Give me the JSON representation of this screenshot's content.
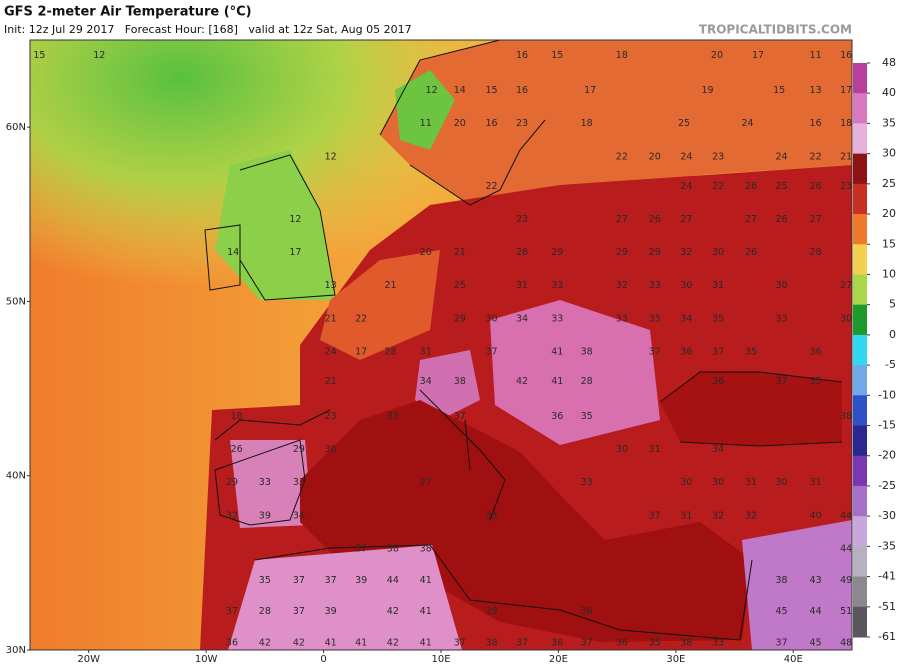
{
  "chart_data": {
    "type": "map",
    "title": "GFS 2-meter Air Temperature (°C)",
    "subtitle": "Init: 12z Jul 29 2017   Forecast Hour: [168]   valid at 12z Sat, Aug 05 2017",
    "credit": "TROPICALTIDBITS.COM",
    "xlim": [
      -25,
      45
    ],
    "ylim": [
      30,
      65
    ],
    "xticks": [
      {
        "value": -20,
        "label": "20W"
      },
      {
        "value": -10,
        "label": "10W"
      },
      0,
      {
        "value": 10,
        "label": "10E"
      },
      {
        "value": 20,
        "label": "20E"
      },
      {
        "value": 30,
        "label": "30E"
      },
      {
        "value": 40,
        "label": "40E"
      }
    ],
    "yticks": [
      {
        "value": 30,
        "label": "30N"
      },
      {
        "value": 40,
        "label": "40N"
      },
      {
        "value": 50,
        "label": "50N"
      },
      {
        "value": 60,
        "label": "60N"
      }
    ],
    "colorbar": {
      "ticks": [
        48,
        40,
        35,
        30,
        25,
        20,
        15,
        10,
        5,
        0,
        -5,
        -10,
        -15,
        -20,
        -25,
        -30,
        -35,
        -41,
        -51,
        -61
      ],
      "colors": [
        "#b8409c",
        "#d878c0",
        "#e8b0dc",
        "#8c1414",
        "#c83020",
        "#f07a2c",
        "#f2d050",
        "#a8d848",
        "#1e9a2c",
        "#30d8f0",
        "#70a8e8",
        "#3050c8",
        "#2a2890",
        "#7a38b0",
        "#a470c8",
        "#c8a8dc",
        "#b8b0c0",
        "#8c8890",
        "#5a5660"
      ]
    },
    "labels": [
      {
        "lon": -24.2,
        "lat": 64.1,
        "value": 15
      },
      {
        "lon": -19.1,
        "lat": 64.1,
        "value": 12
      },
      {
        "lon": 16.9,
        "lat": 64.1,
        "value": 16
      },
      {
        "lon": 19.9,
        "lat": 64.1,
        "value": 15
      },
      {
        "lon": 25.4,
        "lat": 64.1,
        "value": 18
      },
      {
        "lon": 33.5,
        "lat": 64.1,
        "value": 20
      },
      {
        "lon": 37.0,
        "lat": 64.1,
        "value": 17
      },
      {
        "lon": 41.9,
        "lat": 64.1,
        "value": 11
      },
      {
        "lon": 44.5,
        "lat": 64.1,
        "value": 16
      },
      {
        "lon": 9.2,
        "lat": 62.1,
        "value": 12
      },
      {
        "lon": 11.6,
        "lat": 62.1,
        "value": 14
      },
      {
        "lon": 14.3,
        "lat": 62.1,
        "value": 15
      },
      {
        "lon": 16.9,
        "lat": 62.1,
        "value": 16
      },
      {
        "lon": 22.7,
        "lat": 62.1,
        "value": 17
      },
      {
        "lon": 32.7,
        "lat": 62.1,
        "value": 19
      },
      {
        "lon": 38.8,
        "lat": 62.1,
        "value": 15
      },
      {
        "lon": 41.9,
        "lat": 62.1,
        "value": 13
      },
      {
        "lon": 44.5,
        "lat": 62.1,
        "value": 17
      },
      {
        "lon": 8.7,
        "lat": 60.2,
        "value": 11
      },
      {
        "lon": 11.6,
        "lat": 60.2,
        "value": 20
      },
      {
        "lon": 14.3,
        "lat": 60.2,
        "value": 16
      },
      {
        "lon": 16.9,
        "lat": 60.2,
        "value": 23
      },
      {
        "lon": 22.4,
        "lat": 60.2,
        "value": 18
      },
      {
        "lon": 30.7,
        "lat": 60.2,
        "value": 25
      },
      {
        "lon": 36.1,
        "lat": 60.2,
        "value": 24
      },
      {
        "lon": 41.9,
        "lat": 60.2,
        "value": 16
      },
      {
        "lon": 44.5,
        "lat": 60.2,
        "value": 18
      },
      {
        "lon": 0.6,
        "lat": 58.3,
        "value": 12
      },
      {
        "lon": 25.4,
        "lat": 58.3,
        "value": 22
      },
      {
        "lon": 28.2,
        "lat": 58.3,
        "value": 20
      },
      {
        "lon": 30.9,
        "lat": 58.3,
        "value": 24
      },
      {
        "lon": 33.6,
        "lat": 58.3,
        "value": 23
      },
      {
        "lon": 39.0,
        "lat": 58.3,
        "value": 24
      },
      {
        "lon": 41.9,
        "lat": 58.3,
        "value": 22
      },
      {
        "lon": 44.5,
        "lat": 58.3,
        "value": 21
      },
      {
        "lon": 14.3,
        "lat": 56.6,
        "value": 22
      },
      {
        "lon": 30.9,
        "lat": 56.6,
        "value": 24
      },
      {
        "lon": 33.6,
        "lat": 56.6,
        "value": 22
      },
      {
        "lon": 36.4,
        "lat": 56.6,
        "value": 26
      },
      {
        "lon": 39.0,
        "lat": 56.6,
        "value": 25
      },
      {
        "lon": 41.9,
        "lat": 56.6,
        "value": 26
      },
      {
        "lon": 44.5,
        "lat": 56.6,
        "value": 23
      },
      {
        "lon": -2.4,
        "lat": 54.7,
        "value": 12
      },
      {
        "lon": 16.9,
        "lat": 54.7,
        "value": 23
      },
      {
        "lon": 25.4,
        "lat": 54.7,
        "value": 27
      },
      {
        "lon": 28.2,
        "lat": 54.7,
        "value": 26
      },
      {
        "lon": 30.9,
        "lat": 54.7,
        "value": 27
      },
      {
        "lon": 36.4,
        "lat": 54.7,
        "value": 27
      },
      {
        "lon": 39.0,
        "lat": 54.7,
        "value": 26
      },
      {
        "lon": 41.9,
        "lat": 54.7,
        "value": 27
      },
      {
        "lon": -7.7,
        "lat": 52.8,
        "value": 14
      },
      {
        "lon": -2.4,
        "lat": 52.8,
        "value": 17
      },
      {
        "lon": 8.7,
        "lat": 52.8,
        "value": 20
      },
      {
        "lon": 11.6,
        "lat": 52.8,
        "value": 21
      },
      {
        "lon": 16.9,
        "lat": 52.8,
        "value": 28
      },
      {
        "lon": 19.9,
        "lat": 52.8,
        "value": 29
      },
      {
        "lon": 25.4,
        "lat": 52.8,
        "value": 29
      },
      {
        "lon": 28.2,
        "lat": 52.8,
        "value": 29
      },
      {
        "lon": 30.9,
        "lat": 52.8,
        "value": 32
      },
      {
        "lon": 33.6,
        "lat": 52.8,
        "value": 30
      },
      {
        "lon": 36.4,
        "lat": 52.8,
        "value": 26
      },
      {
        "lon": 41.9,
        "lat": 52.8,
        "value": 28
      },
      {
        "lon": 0.6,
        "lat": 50.9,
        "value": 13
      },
      {
        "lon": 5.7,
        "lat": 50.9,
        "value": 21
      },
      {
        "lon": 11.6,
        "lat": 50.9,
        "value": 25
      },
      {
        "lon": 16.9,
        "lat": 50.9,
        "value": 31
      },
      {
        "lon": 19.9,
        "lat": 50.9,
        "value": 33
      },
      {
        "lon": 25.4,
        "lat": 50.9,
        "value": 32
      },
      {
        "lon": 28.2,
        "lat": 50.9,
        "value": 33
      },
      {
        "lon": 30.9,
        "lat": 50.9,
        "value": 30
      },
      {
        "lon": 33.6,
        "lat": 50.9,
        "value": 31
      },
      {
        "lon": 39.0,
        "lat": 50.9,
        "value": 30
      },
      {
        "lon": 44.5,
        "lat": 50.9,
        "value": 27
      },
      {
        "lon": 0.6,
        "lat": 49.0,
        "value": 21
      },
      {
        "lon": 3.2,
        "lat": 49.0,
        "value": 22
      },
      {
        "lon": 11.6,
        "lat": 49.0,
        "value": 29
      },
      {
        "lon": 14.3,
        "lat": 49.0,
        "value": 30
      },
      {
        "lon": 16.9,
        "lat": 49.0,
        "value": 34
      },
      {
        "lon": 19.9,
        "lat": 49.0,
        "value": 33
      },
      {
        "lon": 25.4,
        "lat": 49.0,
        "value": 33
      },
      {
        "lon": 28.2,
        "lat": 49.0,
        "value": 35
      },
      {
        "lon": 30.9,
        "lat": 49.0,
        "value": 34
      },
      {
        "lon": 33.6,
        "lat": 49.0,
        "value": 35
      },
      {
        "lon": 39.0,
        "lat": 49.0,
        "value": 33
      },
      {
        "lon": 44.5,
        "lat": 49.0,
        "value": 30
      },
      {
        "lon": 0.6,
        "lat": 47.1,
        "value": 24
      },
      {
        "lon": 3.2,
        "lat": 47.1,
        "value": 17
      },
      {
        "lon": 5.7,
        "lat": 47.1,
        "value": 28
      },
      {
        "lon": 8.7,
        "lat": 47.1,
        "value": 31
      },
      {
        "lon": 14.3,
        "lat": 47.1,
        "value": 37
      },
      {
        "lon": 19.9,
        "lat": 47.1,
        "value": 41
      },
      {
        "lon": 22.4,
        "lat": 47.1,
        "value": 38
      },
      {
        "lon": 28.2,
        "lat": 47.1,
        "value": 37
      },
      {
        "lon": 30.9,
        "lat": 47.1,
        "value": 36
      },
      {
        "lon": 33.6,
        "lat": 47.1,
        "value": 37
      },
      {
        "lon": 36.4,
        "lat": 47.1,
        "value": 35
      },
      {
        "lon": 41.9,
        "lat": 47.1,
        "value": 36
      },
      {
        "lon": 0.6,
        "lat": 45.4,
        "value": 21
      },
      {
        "lon": 8.7,
        "lat": 45.4,
        "value": 34
      },
      {
        "lon": 11.6,
        "lat": 45.4,
        "value": 38
      },
      {
        "lon": 16.9,
        "lat": 45.4,
        "value": 42
      },
      {
        "lon": 19.9,
        "lat": 45.4,
        "value": 41
      },
      {
        "lon": 22.4,
        "lat": 45.4,
        "value": 28
      },
      {
        "lon": 33.6,
        "lat": 45.4,
        "value": 36
      },
      {
        "lon": 39.0,
        "lat": 45.4,
        "value": 37
      },
      {
        "lon": 41.9,
        "lat": 45.4,
        "value": 35
      },
      {
        "lon": -7.4,
        "lat": 43.4,
        "value": 18
      },
      {
        "lon": 0.6,
        "lat": 43.4,
        "value": 23
      },
      {
        "lon": 5.9,
        "lat": 43.4,
        "value": 33
      },
      {
        "lon": 11.6,
        "lat": 43.4,
        "value": 37
      },
      {
        "lon": 19.9,
        "lat": 43.4,
        "value": 36
      },
      {
        "lon": 22.4,
        "lat": 43.4,
        "value": 35
      },
      {
        "lon": 44.5,
        "lat": 43.4,
        "value": 38
      },
      {
        "lon": -7.4,
        "lat": 41.5,
        "value": 26
      },
      {
        "lon": -2.1,
        "lat": 41.5,
        "value": 29
      },
      {
        "lon": 0.6,
        "lat": 41.5,
        "value": 36
      },
      {
        "lon": 25.4,
        "lat": 41.5,
        "value": 30
      },
      {
        "lon": 28.2,
        "lat": 41.5,
        "value": 31
      },
      {
        "lon": 33.6,
        "lat": 41.5,
        "value": 34
      },
      {
        "lon": -7.8,
        "lat": 39.6,
        "value": 29
      },
      {
        "lon": -5.0,
        "lat": 39.6,
        "value": 33
      },
      {
        "lon": -2.1,
        "lat": 39.6,
        "value": 33
      },
      {
        "lon": 8.7,
        "lat": 39.6,
        "value": 27
      },
      {
        "lon": 22.4,
        "lat": 39.6,
        "value": 33
      },
      {
        "lon": 30.9,
        "lat": 39.6,
        "value": 30
      },
      {
        "lon": 33.6,
        "lat": 39.6,
        "value": 30
      },
      {
        "lon": 36.4,
        "lat": 39.6,
        "value": 31
      },
      {
        "lon": 39.0,
        "lat": 39.6,
        "value": 30
      },
      {
        "lon": 41.9,
        "lat": 39.6,
        "value": 31
      },
      {
        "lon": -7.8,
        "lat": 37.7,
        "value": 32
      },
      {
        "lon": -5.0,
        "lat": 37.7,
        "value": 39
      },
      {
        "lon": -2.1,
        "lat": 37.7,
        "value": 34
      },
      {
        "lon": 14.3,
        "lat": 37.7,
        "value": 33
      },
      {
        "lon": 28.2,
        "lat": 37.7,
        "value": 37
      },
      {
        "lon": 30.9,
        "lat": 37.7,
        "value": 31
      },
      {
        "lon": 33.6,
        "lat": 37.7,
        "value": 32
      },
      {
        "lon": 36.4,
        "lat": 37.7,
        "value": 32
      },
      {
        "lon": 41.9,
        "lat": 37.7,
        "value": 40
      },
      {
        "lon": 44.5,
        "lat": 37.7,
        "value": 44
      },
      {
        "lon": 3.2,
        "lat": 35.8,
        "value": 37
      },
      {
        "lon": 5.9,
        "lat": 35.8,
        "value": 38
      },
      {
        "lon": 8.7,
        "lat": 35.8,
        "value": 38
      },
      {
        "lon": 44.5,
        "lat": 35.8,
        "value": 44
      },
      {
        "lon": -5.0,
        "lat": 34.0,
        "value": 35
      },
      {
        "lon": -2.1,
        "lat": 34.0,
        "value": 37
      },
      {
        "lon": 0.6,
        "lat": 34.0,
        "value": 37
      },
      {
        "lon": 3.2,
        "lat": 34.0,
        "value": 39
      },
      {
        "lon": 5.9,
        "lat": 34.0,
        "value": 44
      },
      {
        "lon": 8.7,
        "lat": 34.0,
        "value": 41
      },
      {
        "lon": 39.0,
        "lat": 34.0,
        "value": 38
      },
      {
        "lon": 41.9,
        "lat": 34.0,
        "value": 43
      },
      {
        "lon": 44.5,
        "lat": 34.0,
        "value": 49
      },
      {
        "lon": -7.8,
        "lat": 32.2,
        "value": 37
      },
      {
        "lon": -5.0,
        "lat": 32.2,
        "value": 28
      },
      {
        "lon": -2.1,
        "lat": 32.2,
        "value": 37
      },
      {
        "lon": 0.6,
        "lat": 32.2,
        "value": 39
      },
      {
        "lon": 5.9,
        "lat": 32.2,
        "value": 42
      },
      {
        "lon": 8.7,
        "lat": 32.2,
        "value": 41
      },
      {
        "lon": 14.3,
        "lat": 32.2,
        "value": 39
      },
      {
        "lon": 22.4,
        "lat": 32.2,
        "value": 36
      },
      {
        "lon": 39.0,
        "lat": 32.2,
        "value": 45
      },
      {
        "lon": 41.9,
        "lat": 32.2,
        "value": 44
      },
      {
        "lon": 44.5,
        "lat": 32.2,
        "value": 51
      },
      {
        "lon": -7.8,
        "lat": 30.4,
        "value": 36
      },
      {
        "lon": -5.0,
        "lat": 30.4,
        "value": 42
      },
      {
        "lon": -2.1,
        "lat": 30.4,
        "value": 42
      },
      {
        "lon": 0.6,
        "lat": 30.4,
        "value": 41
      },
      {
        "lon": 3.2,
        "lat": 30.4,
        "value": 41
      },
      {
        "lon": 5.9,
        "lat": 30.4,
        "value": 42
      },
      {
        "lon": 8.7,
        "lat": 30.4,
        "value": 41
      },
      {
        "lon": 11.6,
        "lat": 30.4,
        "value": 37
      },
      {
        "lon": 14.3,
        "lat": 30.4,
        "value": 38
      },
      {
        "lon": 16.9,
        "lat": 30.4,
        "value": 37
      },
      {
        "lon": 19.9,
        "lat": 30.4,
        "value": 38
      },
      {
        "lon": 22.4,
        "lat": 30.4,
        "value": 37
      },
      {
        "lon": 25.4,
        "lat": 30.4,
        "value": 36
      },
      {
        "lon": 28.2,
        "lat": 30.4,
        "value": 35
      },
      {
        "lon": 30.9,
        "lat": 30.4,
        "value": 38
      },
      {
        "lon": 33.6,
        "lat": 30.4,
        "value": 33
      },
      {
        "lon": 39.0,
        "lat": 30.4,
        "value": 37
      },
      {
        "lon": 41.9,
        "lat": 30.4,
        "value": 45
      },
      {
        "lon": 44.5,
        "lat": 30.4,
        "value": 48
      }
    ]
  }
}
